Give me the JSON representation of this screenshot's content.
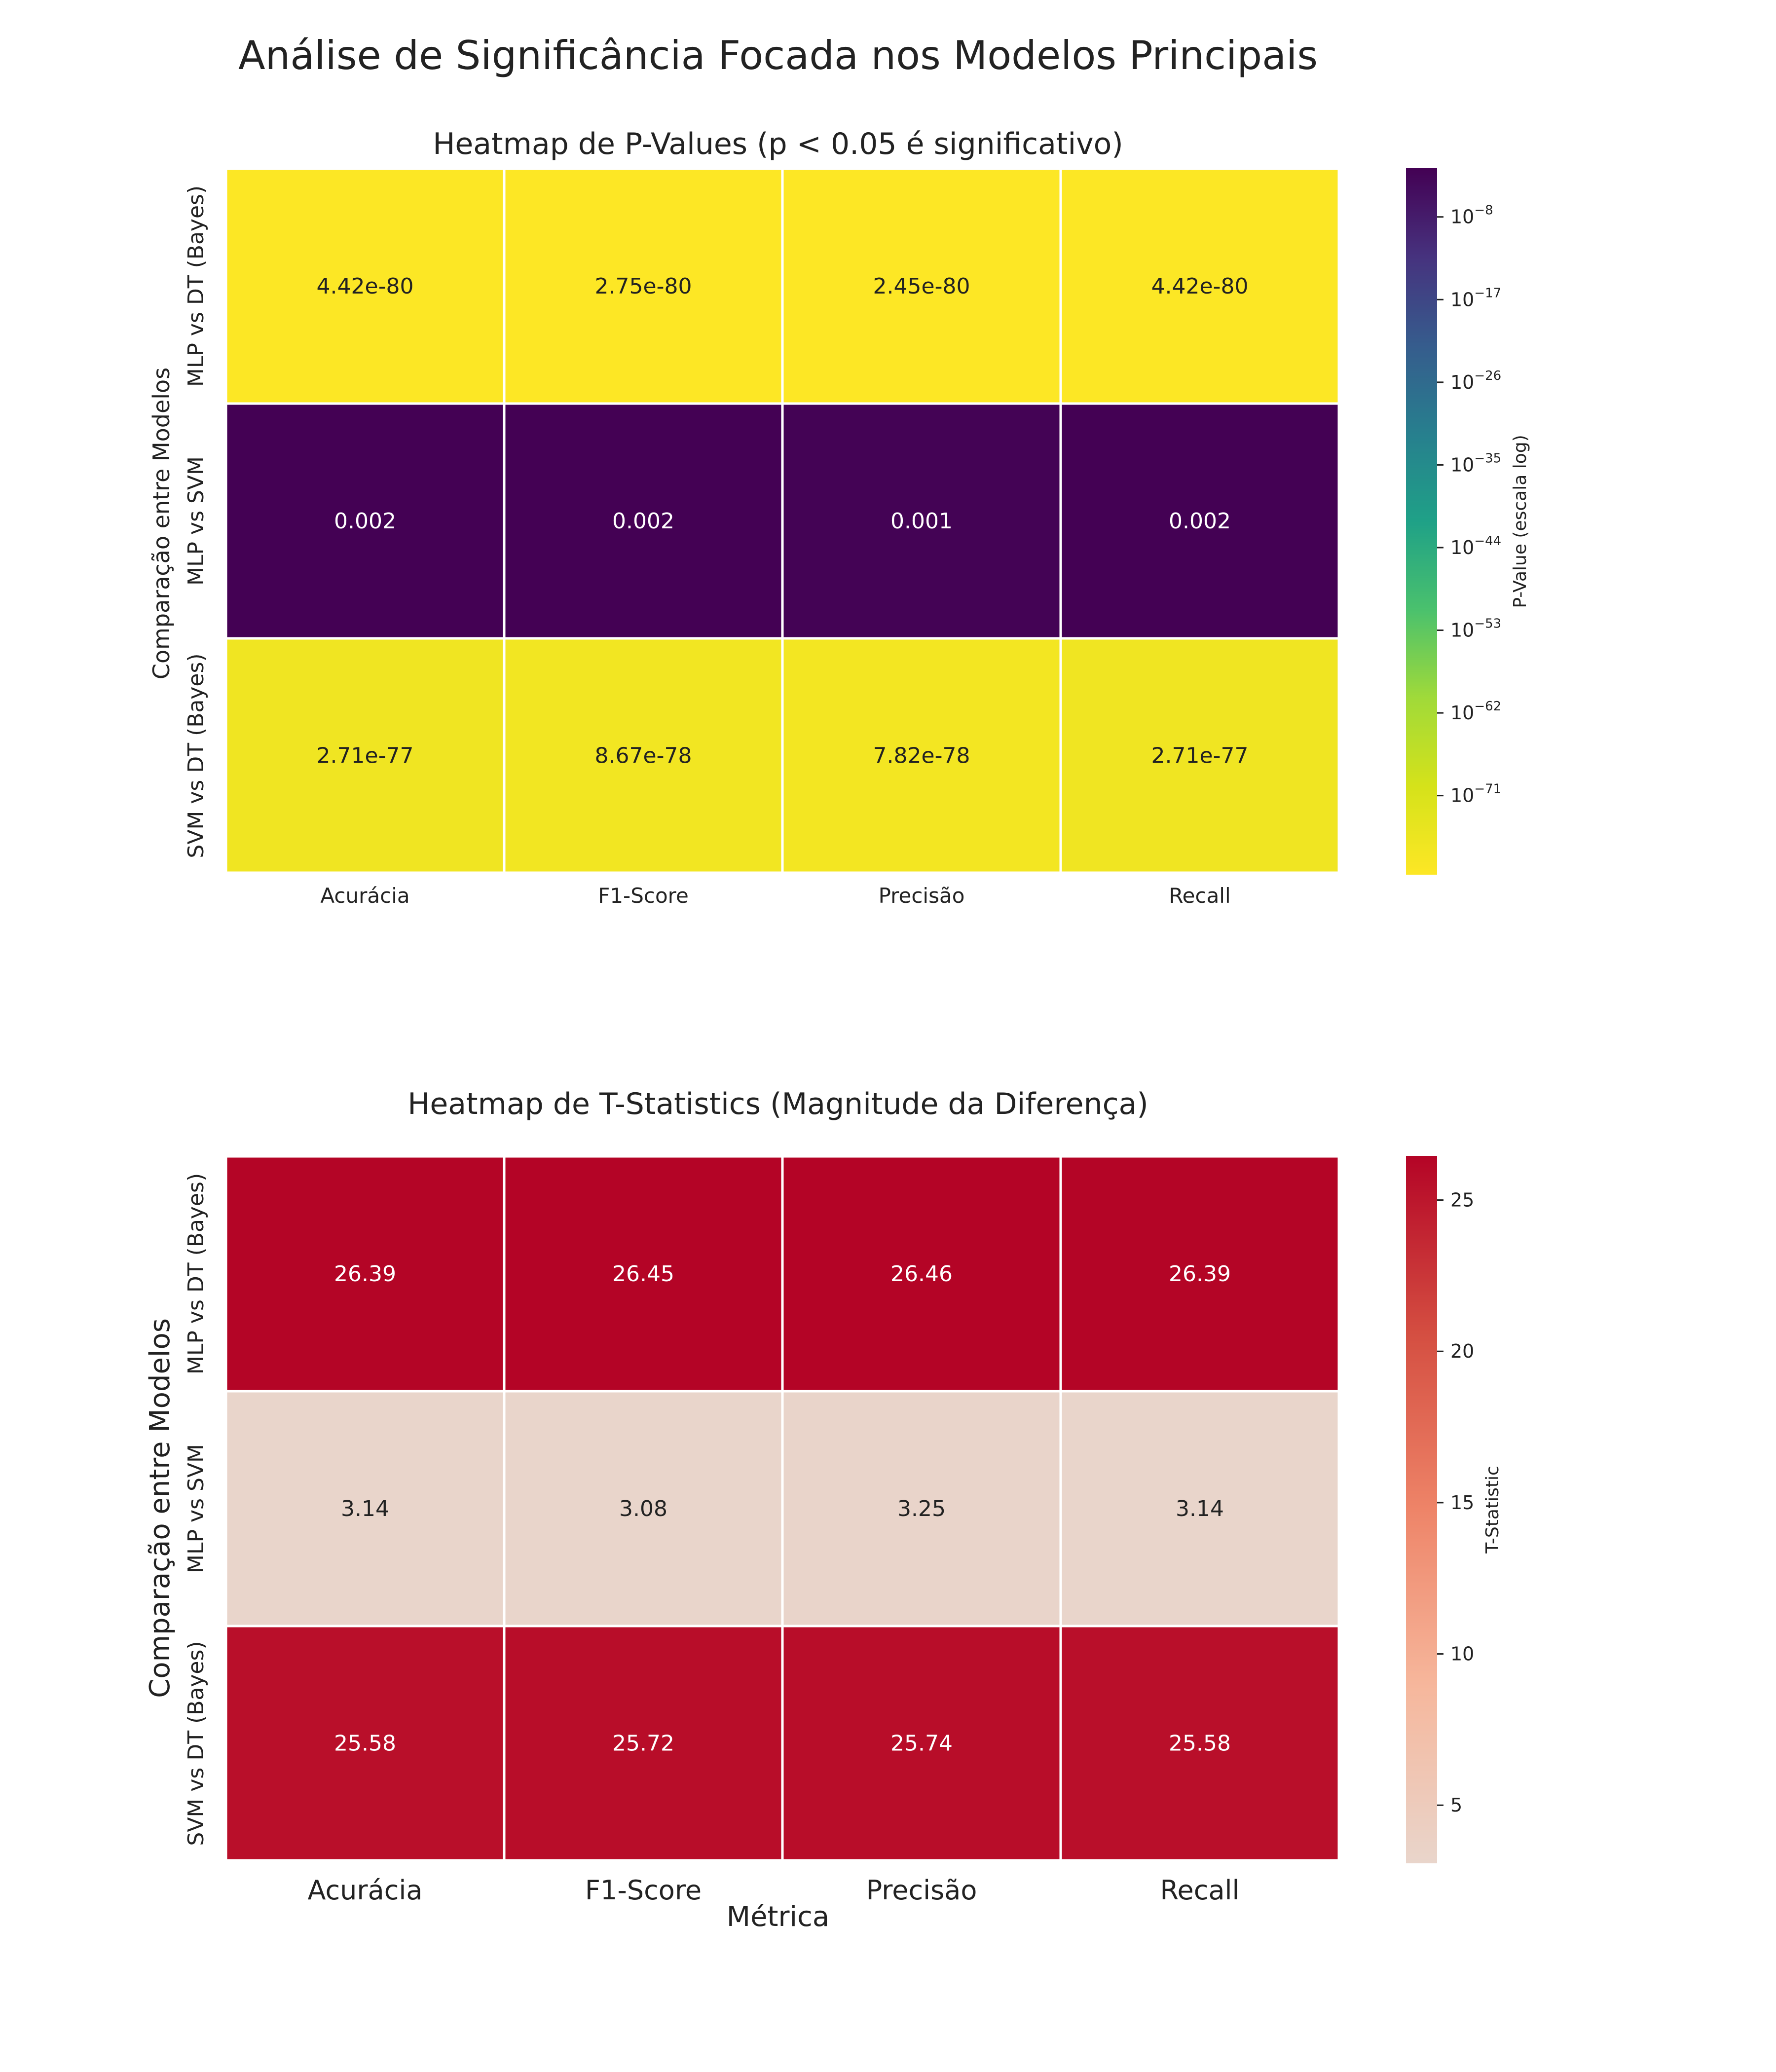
{
  "figure": {
    "suptitle": "Análise de Significância Focada nos Modelos Principais"
  },
  "chart_data": [
    {
      "type": "heatmap",
      "title": "Heatmap de P-Values (p < 0.05 é significativo)",
      "xlabel": "",
      "ylabel": "Comparação entre Modelos",
      "categories_x": [
        "Acurácia",
        "F1-Score",
        "Precisão",
        "Recall"
      ],
      "categories_y": [
        "MLP vs DT (Bayes)",
        "MLP vs SVM",
        "SVM vs DT (Bayes)"
      ],
      "values": [
        [
          4.42e-80,
          2.75e-80,
          2.45e-80,
          4.42e-80
        ],
        [
          0.002,
          0.002,
          0.001,
          0.002
        ],
        [
          2.71e-77,
          8.67e-78,
          7.82e-78,
          2.71e-77
        ]
      ],
      "annotations": [
        [
          "4.42e-80",
          "2.75e-80",
          "2.45e-80",
          "4.42e-80"
        ],
        [
          "0.002",
          "0.002",
          "0.001",
          "0.002"
        ],
        [
          "2.71e-77",
          "8.67e-78",
          "7.82e-78",
          "2.71e-77"
        ]
      ],
      "colormap": "viridis_r",
      "colorbar": {
        "label": "P-Value (escala log)",
        "scale": "log",
        "range": [
          2.45e-80,
          0.002
        ],
        "ticks": [
          {
            "value": 1e-08,
            "base": "10",
            "exp": "−8"
          },
          {
            "value": 1e-17,
            "base": "10",
            "exp": "−17"
          },
          {
            "value": 1e-26,
            "base": "10",
            "exp": "−26"
          },
          {
            "value": 1e-35,
            "base": "10",
            "exp": "−35"
          },
          {
            "value": 1e-44,
            "base": "10",
            "exp": "−44"
          },
          {
            "value": 1e-53,
            "base": "10",
            "exp": "−53"
          },
          {
            "value": 1e-62,
            "base": "10",
            "exp": "−62"
          },
          {
            "value": 1e-71,
            "base": "10",
            "exp": "−71"
          }
        ]
      }
    },
    {
      "type": "heatmap",
      "title": "Heatmap de T-Statistics (Magnitude da Diferença)",
      "xlabel": "Métrica",
      "ylabel": "Comparação entre Modelos",
      "categories_x": [
        "Acurácia",
        "F1-Score",
        "Precisão",
        "Recall"
      ],
      "categories_y": [
        "MLP vs DT (Bayes)",
        "MLP vs SVM",
        "SVM vs DT (Bayes)"
      ],
      "values": [
        [
          26.39,
          26.45,
          26.46,
          26.39
        ],
        [
          3.14,
          3.08,
          3.25,
          3.14
        ],
        [
          25.58,
          25.72,
          25.74,
          25.58
        ]
      ],
      "annotations": [
        [
          "26.39",
          "26.45",
          "26.46",
          "26.39"
        ],
        [
          "3.14",
          "3.08",
          "3.25",
          "3.14"
        ],
        [
          "25.58",
          "25.72",
          "25.74",
          "25.58"
        ]
      ],
      "colormap": "coolwarm (upper half)",
      "colorbar": {
        "label": "T-Statistic",
        "scale": "linear",
        "range": [
          3.08,
          26.46
        ],
        "ticks": [
          5,
          10,
          15,
          20,
          25
        ]
      }
    }
  ]
}
